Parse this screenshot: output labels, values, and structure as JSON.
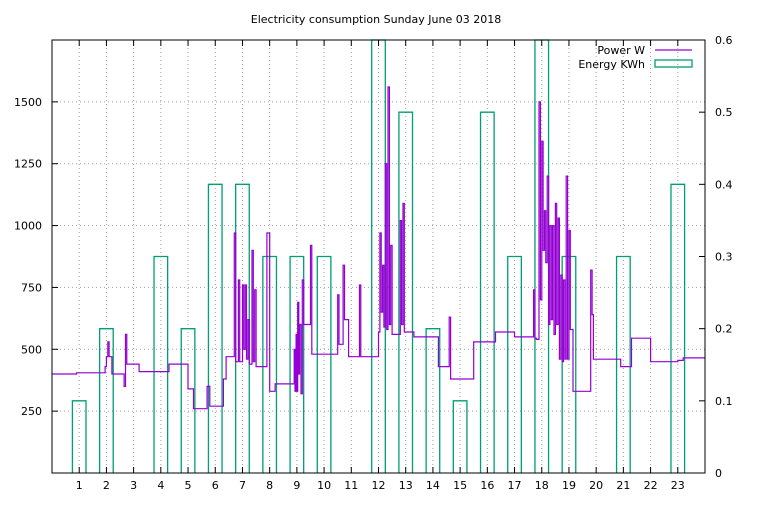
{
  "chart_data": {
    "type": "line",
    "title": "Electricity consumption Sunday June 03 2018",
    "xlabel": "",
    "ylabel": "",
    "y2label": "",
    "xlim": [
      0,
      24
    ],
    "ylim": [
      0,
      1750
    ],
    "y2lim": [
      0,
      0.6
    ],
    "x_ticks": [
      1,
      2,
      3,
      4,
      5,
      6,
      7,
      8,
      9,
      10,
      11,
      12,
      13,
      14,
      15,
      16,
      17,
      18,
      19,
      20,
      21,
      22,
      23
    ],
    "x_tick_labels": [
      "1",
      "2",
      "3",
      "4",
      "5",
      "6",
      "7",
      "8",
      "9",
      "10",
      "11",
      "12",
      "13",
      "14",
      "15",
      "16",
      "17",
      "18",
      "19",
      "20",
      "21",
      "22",
      "23"
    ],
    "y_ticks": [
      250,
      500,
      750,
      1000,
      1250,
      1500
    ],
    "y_tick_labels": [
      "250",
      "500",
      "750",
      "1000",
      "1250",
      "1500"
    ],
    "y2_ticks": [
      0,
      0.1,
      0.2,
      0.3,
      0.4,
      0.5,
      0.6
    ],
    "y2_tick_labels": [
      "0",
      "0.1",
      "0.2",
      "0.3",
      "0.4",
      "0.5",
      "0.6"
    ],
    "grid": true,
    "legend_position": "top-right",
    "colors": {
      "power": "#9400d3",
      "energy": "#009e73"
    },
    "series": [
      {
        "name": "Power W",
        "axis": "left",
        "style": "step-line",
        "points": [
          [
            0.0,
            400
          ],
          [
            0.9,
            405
          ],
          [
            1.95,
            430
          ],
          [
            2.0,
            470
          ],
          [
            2.05,
            530
          ],
          [
            2.1,
            470
          ],
          [
            2.2,
            400
          ],
          [
            2.65,
            350
          ],
          [
            2.7,
            560
          ],
          [
            2.75,
            440
          ],
          [
            3.2,
            410
          ],
          [
            4.3,
            440
          ],
          [
            5.0,
            340
          ],
          [
            5.2,
            260
          ],
          [
            5.7,
            350
          ],
          [
            5.8,
            270
          ],
          [
            6.3,
            380
          ],
          [
            6.4,
            470
          ],
          [
            6.7,
            970
          ],
          [
            6.75,
            450
          ],
          [
            6.85,
            780
          ],
          [
            6.9,
            450
          ],
          [
            7.0,
            760
          ],
          [
            7.05,
            500
          ],
          [
            7.1,
            760
          ],
          [
            7.15,
            460
          ],
          [
            7.2,
            620
          ],
          [
            7.25,
            440
          ],
          [
            7.35,
            900
          ],
          [
            7.4,
            450
          ],
          [
            7.45,
            740
          ],
          [
            7.5,
            430
          ],
          [
            7.9,
            970
          ],
          [
            8.0,
            330
          ],
          [
            8.2,
            360
          ],
          [
            8.9,
            500
          ],
          [
            8.93,
            330
          ],
          [
            8.97,
            560
          ],
          [
            9.0,
            330
          ],
          [
            9.03,
            690
          ],
          [
            9.07,
            400
          ],
          [
            9.1,
            600
          ],
          [
            9.15,
            320
          ],
          [
            9.2,
            780
          ],
          [
            9.25,
            600
          ],
          [
            9.5,
            920
          ],
          [
            9.55,
            480
          ],
          [
            10.5,
            720
          ],
          [
            10.55,
            520
          ],
          [
            10.7,
            840
          ],
          [
            10.75,
            620
          ],
          [
            10.9,
            470
          ],
          [
            11.3,
            760
          ],
          [
            11.35,
            470
          ],
          [
            11.6,
            470
          ],
          [
            12.0,
            570
          ],
          [
            12.05,
            970
          ],
          [
            12.1,
            650
          ],
          [
            12.15,
            840
          ],
          [
            12.2,
            590
          ],
          [
            12.25,
            1250
          ],
          [
            12.3,
            580
          ],
          [
            12.35,
            1560
          ],
          [
            12.4,
            600
          ],
          [
            12.45,
            920
          ],
          [
            12.5,
            560
          ],
          [
            12.8,
            1020
          ],
          [
            12.85,
            600
          ],
          [
            12.9,
            1090
          ],
          [
            12.95,
            570
          ],
          [
            13.3,
            550
          ],
          [
            13.6,
            550
          ],
          [
            14.2,
            430
          ],
          [
            14.6,
            630
          ],
          [
            14.65,
            380
          ],
          [
            15.0,
            380
          ],
          [
            15.5,
            530
          ],
          [
            16.3,
            570
          ],
          [
            17.0,
            550
          ],
          [
            17.7,
            740
          ],
          [
            17.75,
            545
          ],
          [
            17.8,
            540
          ],
          [
            17.9,
            1500
          ],
          [
            17.95,
            700
          ],
          [
            18.0,
            1340
          ],
          [
            18.05,
            900
          ],
          [
            18.1,
            1060
          ],
          [
            18.15,
            850
          ],
          [
            18.2,
            1200
          ],
          [
            18.25,
            600
          ],
          [
            18.3,
            1000
          ],
          [
            18.35,
            620
          ],
          [
            18.4,
            1000
          ],
          [
            18.45,
            560
          ],
          [
            18.5,
            1090
          ],
          [
            18.55,
            600
          ],
          [
            18.6,
            1030
          ],
          [
            18.65,
            460
          ],
          [
            18.7,
            800
          ],
          [
            18.75,
            450
          ],
          [
            18.8,
            780
          ],
          [
            18.85,
            460
          ],
          [
            18.9,
            1200
          ],
          [
            18.95,
            460
          ],
          [
            19.0,
            980
          ],
          [
            19.05,
            580
          ],
          [
            19.15,
            330
          ],
          [
            19.8,
            820
          ],
          [
            19.85,
            640
          ],
          [
            19.9,
            460
          ],
          [
            20.9,
            430
          ],
          [
            21.3,
            545
          ],
          [
            22.0,
            450
          ],
          [
            23.0,
            455
          ],
          [
            23.2,
            465
          ],
          [
            24.0,
            465
          ]
        ]
      },
      {
        "name": "Energy KWh",
        "axis": "right",
        "style": "boxes",
        "points": [
          [
            1,
            0.1
          ],
          [
            2,
            0.2
          ],
          [
            3,
            0
          ],
          [
            4,
            0.3
          ],
          [
            5,
            0.2
          ],
          [
            6,
            0.4
          ],
          [
            7,
            0.4
          ],
          [
            8,
            0.3
          ],
          [
            9,
            0.3
          ],
          [
            10,
            0.3
          ],
          [
            11,
            0
          ],
          [
            12,
            0.6
          ],
          [
            13,
            0.5
          ],
          [
            14,
            0.2
          ],
          [
            15,
            0.1
          ],
          [
            16,
            0.5
          ],
          [
            17,
            0.3
          ],
          [
            18,
            0.6
          ],
          [
            19,
            0.3
          ],
          [
            20,
            0
          ],
          [
            21,
            0.3
          ],
          [
            22,
            0
          ],
          [
            23,
            0.4
          ]
        ]
      }
    ]
  }
}
